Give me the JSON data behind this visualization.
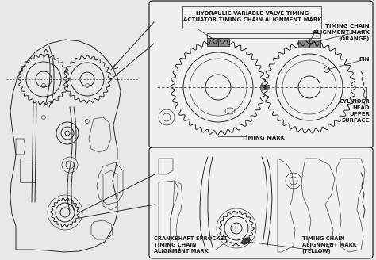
{
  "bg_color": "#e8e8e4",
  "line_color": "#1a1a1a",
  "box_fill": "#f0f0ec",
  "box_edge": "#1a1a1a",
  "labels": {
    "hvvt": "HYDRAULIC VARIABLE VALVE TIMING\nACTUATOR TIMING CHAIN ALIGNMENT MARK",
    "tc_orange": "TIMING CHAIN\nALIGNMENT MARK\n(ORANGE)",
    "pin": "PIN",
    "cyl_head": "CYLINDER\nHEAD\nUPPER\nSURFACE",
    "timing_mark": "TIMING MARK",
    "crank_label": "CRANKSHAFT SPROCKET\nTIMING CHAIN\nALIGNMENT MARK",
    "tc_yellow": "TIMING CHAIN\nALIGNMENT MARK\n(YELLOW)"
  },
  "font_size": 5.0,
  "lw_main": 0.65,
  "lw_thin": 0.4
}
